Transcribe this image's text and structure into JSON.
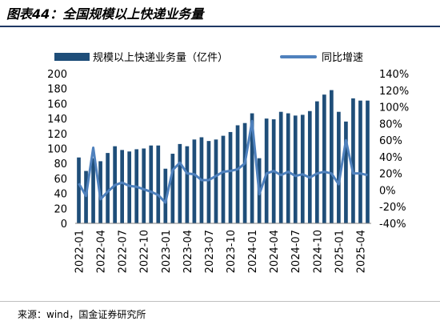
{
  "figure_title": "图表44：全国规模以上快递业务量",
  "source": "来源：wind，国金证券研究所",
  "chart_data": {
    "type": "bar+line",
    "colors": {
      "bar": "#1f4e79",
      "line": "#4f81bd"
    },
    "legend": {
      "placement": "top",
      "bar_label": "规模以上快递业务量（亿件）",
      "line_label": "同比增速"
    },
    "y_left": {
      "lim": [
        0,
        200
      ],
      "ticks": [
        0,
        20,
        40,
        60,
        80,
        100,
        120,
        140,
        160,
        180,
        200
      ]
    },
    "y_right": {
      "lim": [
        -40,
        140
      ],
      "ticks": [
        "-40%",
        "-20%",
        "0%",
        "20%",
        "40%",
        "60%",
        "80%",
        "100%",
        "120%",
        "140%"
      ],
      "tick_values": [
        -40,
        -20,
        0,
        20,
        40,
        60,
        80,
        100,
        120,
        140
      ]
    },
    "x_tick_labels": [
      "2022-01",
      "2022-04",
      "2022-07",
      "2022-10",
      "2023-01",
      "2023-04",
      "2023-07",
      "2023-10",
      "2024-01",
      "2024-04",
      "2024-07",
      "2024-10",
      "2025-01",
      "2025-04"
    ],
    "categories": [
      "2022-01",
      "2022-02",
      "2022-03",
      "2022-04",
      "2022-05",
      "2022-06",
      "2022-07",
      "2022-08",
      "2022-09",
      "2022-10",
      "2022-11",
      "2022-12",
      "2023-01",
      "2023-02",
      "2023-03",
      "2023-04",
      "2023-05",
      "2023-06",
      "2023-07",
      "2023-08",
      "2023-09",
      "2023-10",
      "2023-11",
      "2023-12",
      "2024-01",
      "2024-02",
      "2024-03",
      "2024-04",
      "2024-05",
      "2024-06",
      "2024-07",
      "2024-08",
      "2024-09",
      "2024-10",
      "2024-11",
      "2024-12",
      "2025-01",
      "2025-02",
      "2025-03",
      "2025-04",
      "2025-05"
    ],
    "series": [
      {
        "name": "规模以上快递业务量（亿件）",
        "type": "bar",
        "values": [
          88,
          70,
          87,
          83,
          94,
          103,
          98,
          96,
          99,
          100,
          104,
          104,
          73,
          93,
          106,
          103,
          112,
          115,
          110,
          112,
          117,
          122,
          131,
          134,
          147,
          87,
          140,
          139,
          149,
          147,
          144,
          145,
          150,
          163,
          172,
          178,
          149,
          136,
          167,
          164,
          164
        ]
      },
      {
        "name": "同比增速",
        "type": "line",
        "values": [
          8,
          -7,
          51,
          -11,
          -2,
          6,
          9,
          5,
          4,
          1,
          -2,
          -6,
          -15,
          24,
          33,
          20,
          19,
          12,
          12,
          17,
          22,
          23,
          25,
          32,
          83,
          -5,
          20,
          23,
          18,
          22,
          17,
          19,
          15,
          20,
          22,
          20,
          7,
          60,
          20,
          20,
          18
        ]
      }
    ]
  }
}
